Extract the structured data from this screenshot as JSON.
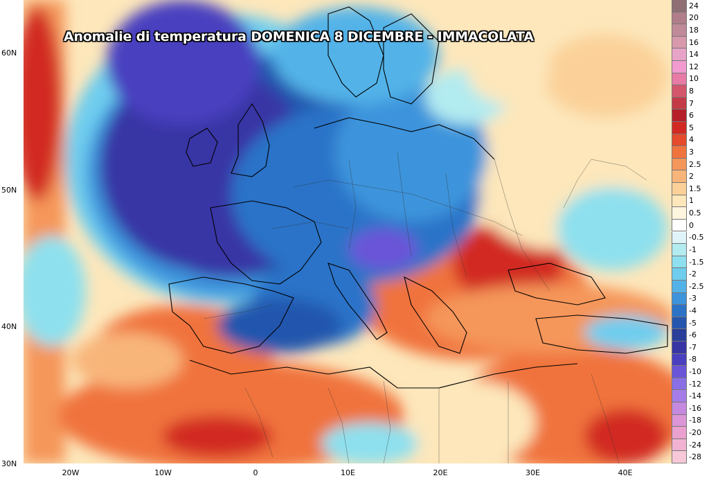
{
  "title": "Anomalie di temperatura DOMENICA 8 DICEMBRE - IMMACOLATA",
  "lat_labels": [
    {
      "label": "60N",
      "lat": 60
    },
    {
      "label": "50N",
      "lat": 50
    },
    {
      "label": "40N",
      "lat": 40
    },
    {
      "label": "30N",
      "lat": 30
    }
  ],
  "lon_labels": [
    {
      "label": "20W",
      "lon": -20
    },
    {
      "label": "10W",
      "lon": -10
    },
    {
      "label": "0",
      "lon": 0
    },
    {
      "label": "10E",
      "lon": 10
    },
    {
      "label": "20E",
      "lon": 20
    },
    {
      "label": "30E",
      "lon": 30
    },
    {
      "label": "40E",
      "lon": 40
    }
  ],
  "colorbar": [
    {
      "label": "24",
      "color": "#8e6f74"
    },
    {
      "label": "20",
      "color": "#b07e8a"
    },
    {
      "label": "18",
      "color": "#c08a98"
    },
    {
      "label": "16",
      "color": "#d899ad"
    },
    {
      "label": "14",
      "color": "#e8a3c8"
    },
    {
      "label": "12",
      "color": "#f29bd0"
    },
    {
      "label": "10",
      "color": "#e87aa6"
    },
    {
      "label": "8",
      "color": "#d4566c"
    },
    {
      "label": "7",
      "color": "#c43b48"
    },
    {
      "label": "6",
      "color": "#b51f2a"
    },
    {
      "label": "5",
      "color": "#d22a22"
    },
    {
      "label": "4",
      "color": "#e44a2b"
    },
    {
      "label": "3",
      "color": "#f0733e"
    },
    {
      "label": "2.5",
      "color": "#f5965a"
    },
    {
      "label": "2",
      "color": "#f8b57a"
    },
    {
      "label": "1.5",
      "color": "#fbd199"
    },
    {
      "label": "1",
      "color": "#fde7bb"
    },
    {
      "label": "0.5",
      "color": "#fff6df"
    },
    {
      "label": "0",
      "color": "#ffffff"
    },
    {
      "label": "-0.5",
      "color": "#dff4f8"
    },
    {
      "label": "-1",
      "color": "#b2ebf0"
    },
    {
      "label": "-1.5",
      "color": "#8ee0ee"
    },
    {
      "label": "-2",
      "color": "#6fcdee"
    },
    {
      "label": "-2.5",
      "color": "#53b3e8"
    },
    {
      "label": "-3",
      "color": "#3e94dc"
    },
    {
      "label": "-4",
      "color": "#2c73c8"
    },
    {
      "label": "-5",
      "color": "#2456ae"
    },
    {
      "label": "-6",
      "color": "#2a3f9a"
    },
    {
      "label": "-7",
      "color": "#3836a5"
    },
    {
      "label": "-8",
      "color": "#4a3fc0"
    },
    {
      "label": "-10",
      "color": "#6a55d8"
    },
    {
      "label": "-12",
      "color": "#8a6ee6"
    },
    {
      "label": "-14",
      "color": "#a67de8"
    },
    {
      "label": "-16",
      "color": "#c58ae0"
    },
    {
      "label": "-18",
      "color": "#dc95d6"
    },
    {
      "label": "-20",
      "color": "#eaa1cf"
    },
    {
      "label": "-24",
      "color": "#f2b3d2"
    },
    {
      "label": "-28",
      "color": "#f6c8d8"
    }
  ]
}
